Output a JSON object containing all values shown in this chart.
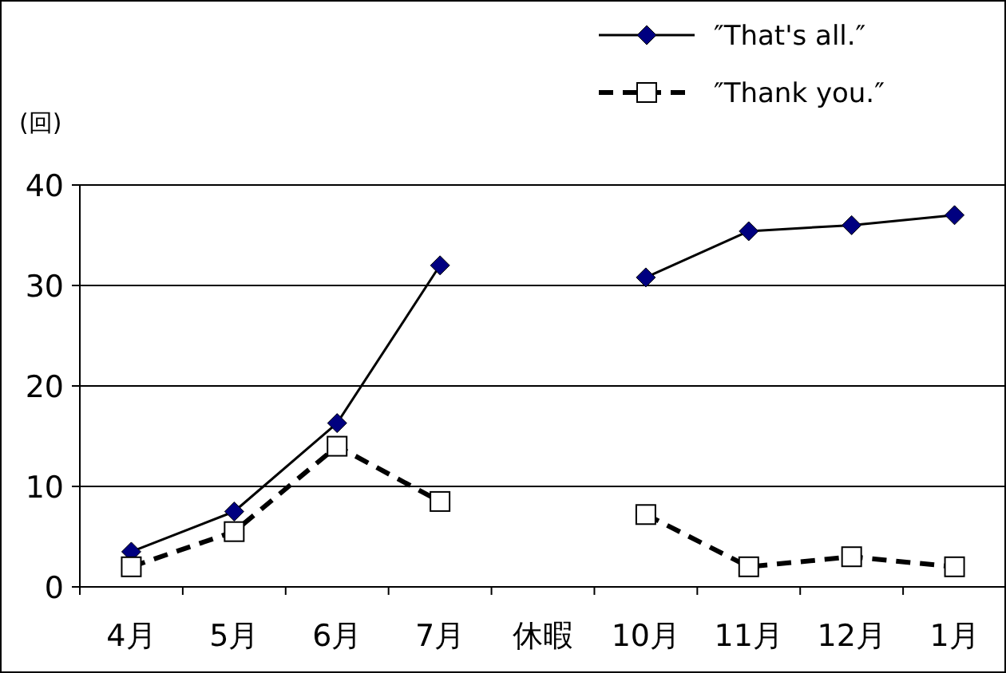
{
  "chart_data": {
    "type": "line",
    "ylabel": "(回)",
    "categories": [
      "4月",
      "5月",
      "6月",
      "7月",
      "休暇",
      "10月",
      "11月",
      "12月",
      "1月"
    ],
    "series": [
      {
        "name": "″That's all.″",
        "color": "#000080",
        "marker": "diamond",
        "line_style": "solid",
        "values": [
          3.5,
          7.5,
          16.3,
          32,
          null,
          30.8,
          35.4,
          36,
          37
        ]
      },
      {
        "name": "″Thank you.″",
        "color": "#ffffff",
        "marker": "square",
        "line_style": "dashed",
        "values": [
          2,
          5.5,
          14,
          8.5,
          null,
          7.2,
          2,
          3,
          2
        ]
      }
    ],
    "ylim": [
      0,
      40
    ],
    "yticks": [
      0,
      10,
      20,
      30,
      40
    ],
    "grid": "y",
    "legend": "top right"
  }
}
